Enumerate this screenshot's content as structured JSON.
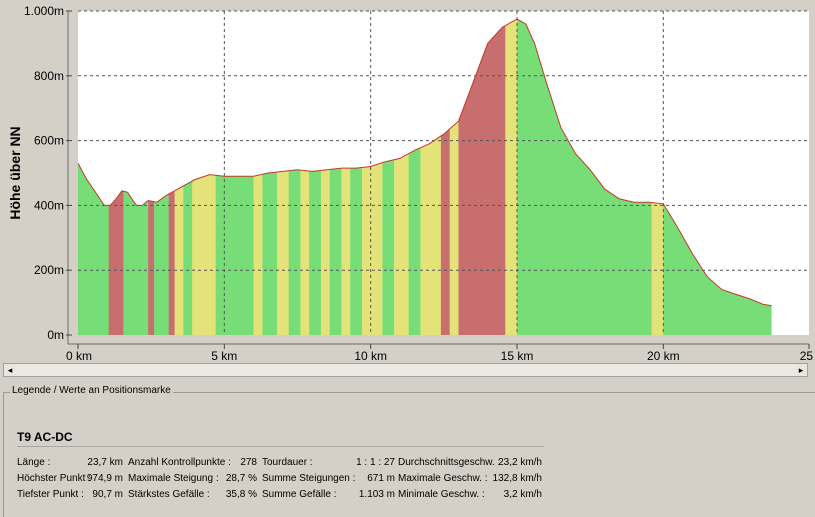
{
  "chart_data": {
    "type": "area",
    "ylabel": "Höhe über NN",
    "xlabel": "",
    "xlim": [
      0,
      25
    ],
    "ylim": [
      0,
      1000
    ],
    "x_ticks": [
      "0 km",
      "5 km",
      "10 km",
      "15 km",
      "20 km",
      "25 km"
    ],
    "y_ticks": [
      "0m",
      "200m",
      "400m",
      "600m",
      "800m",
      "1.000m"
    ],
    "grid": true,
    "colors": {
      "flat": "#77dd77",
      "moderate": "#e3e37a",
      "steep": "#c86e6e",
      "line": "#c0392b"
    },
    "series": [
      {
        "x": [
          0,
          0.3,
          0.6,
          0.9,
          1.1,
          1.3,
          1.5,
          1.7,
          1.8,
          2.0,
          2.2,
          2.4,
          2.7,
          3.0,
          3.2,
          3.5,
          4.0,
          4.5,
          5.0,
          5.5,
          6.0,
          6.5,
          7.0,
          7.5,
          8.0,
          8.5,
          9.0,
          9.5,
          10.0,
          10.5,
          11.0,
          11.5,
          12.0,
          12.5,
          13.0,
          13.5,
          14.0,
          14.5,
          15.0,
          15.3,
          15.6,
          16.0,
          16.5,
          17.0,
          17.5,
          18.0,
          18.5,
          19.0,
          19.5,
          20.0,
          20.5,
          21.0,
          21.5,
          22.0,
          22.5,
          23.0,
          23.4,
          23.7
        ],
        "y": [
          530,
          480,
          440,
          400,
          400,
          420,
          445,
          440,
          425,
          400,
          400,
          415,
          410,
          430,
          440,
          455,
          480,
          495,
          490,
          490,
          490,
          500,
          505,
          510,
          505,
          510,
          515,
          515,
          520,
          535,
          545,
          570,
          590,
          620,
          660,
          780,
          900,
          950,
          975,
          960,
          900,
          780,
          640,
          560,
          510,
          450,
          420,
          410,
          410,
          405,
          330,
          250,
          180,
          140,
          125,
          110,
          95,
          90
        ]
      }
    ],
    "gradient_bands": [
      {
        "from": 0,
        "to": 1.05,
        "grade": "flat"
      },
      {
        "from": 1.05,
        "to": 1.55,
        "grade": "steep"
      },
      {
        "from": 1.55,
        "to": 2.4,
        "grade": "flat"
      },
      {
        "from": 2.4,
        "to": 2.6,
        "grade": "steep"
      },
      {
        "from": 2.6,
        "to": 3.1,
        "grade": "flat"
      },
      {
        "from": 3.1,
        "to": 3.3,
        "grade": "steep"
      },
      {
        "from": 3.3,
        "to": 3.6,
        "grade": "moderate"
      },
      {
        "from": 3.6,
        "to": 3.9,
        "grade": "flat"
      },
      {
        "from": 3.9,
        "to": 4.7,
        "grade": "moderate"
      },
      {
        "from": 4.7,
        "to": 6.0,
        "grade": "flat"
      },
      {
        "from": 6.0,
        "to": 6.3,
        "grade": "moderate"
      },
      {
        "from": 6.3,
        "to": 6.8,
        "grade": "flat"
      },
      {
        "from": 6.8,
        "to": 7.2,
        "grade": "moderate"
      },
      {
        "from": 7.2,
        "to": 7.6,
        "grade": "flat"
      },
      {
        "from": 7.6,
        "to": 7.9,
        "grade": "moderate"
      },
      {
        "from": 7.9,
        "to": 8.3,
        "grade": "flat"
      },
      {
        "from": 8.3,
        "to": 8.6,
        "grade": "moderate"
      },
      {
        "from": 8.6,
        "to": 9.0,
        "grade": "flat"
      },
      {
        "from": 9.0,
        "to": 9.3,
        "grade": "moderate"
      },
      {
        "from": 9.3,
        "to": 9.7,
        "grade": "flat"
      },
      {
        "from": 9.7,
        "to": 10.4,
        "grade": "moderate"
      },
      {
        "from": 10.4,
        "to": 10.8,
        "grade": "flat"
      },
      {
        "from": 10.8,
        "to": 11.3,
        "grade": "moderate"
      },
      {
        "from": 11.3,
        "to": 11.7,
        "grade": "flat"
      },
      {
        "from": 11.7,
        "to": 12.4,
        "grade": "moderate"
      },
      {
        "from": 12.4,
        "to": 12.7,
        "grade": "steep"
      },
      {
        "from": 12.7,
        "to": 13.0,
        "grade": "moderate"
      },
      {
        "from": 13.0,
        "to": 14.6,
        "grade": "steep"
      },
      {
        "from": 14.6,
        "to": 15.0,
        "grade": "moderate"
      },
      {
        "from": 15.0,
        "to": 19.6,
        "grade": "flat"
      },
      {
        "from": 19.6,
        "to": 20.0,
        "grade": "moderate"
      },
      {
        "from": 20.0,
        "to": 23.7,
        "grade": "flat"
      }
    ]
  },
  "legend": {
    "title": "Legende / Werte an Positionsmarke",
    "tour_name": "T9 AC-DC",
    "stats": [
      [
        {
          "label": "Länge :",
          "value": "23,7 km"
        },
        {
          "label": "Höchster Punkt :",
          "value": "974,9 m"
        },
        {
          "label": "Tiefster Punkt :",
          "value": "90,7 m"
        }
      ],
      [
        {
          "label": "Anzahl Kontrollpunkte :",
          "value": "278"
        },
        {
          "label": "Maximale Steigung :",
          "value": "28,7 %"
        },
        {
          "label": "Stärkstes Gefälle :",
          "value": "35,8 %"
        }
      ],
      [
        {
          "label": "Tourdauer :",
          "value": "1 : 1 : 27"
        },
        {
          "label": "Summe Steigungen :",
          "value": "671 m"
        },
        {
          "label": "Summe Gefälle :",
          "value": "1.103 m"
        }
      ],
      [
        {
          "label": "Durchschnittsgeschw. :",
          "value": "23,2 km/h"
        },
        {
          "label": "Maximale Geschw. :",
          "value": "132,8 km/h"
        },
        {
          "label": "Minimale Geschw. :",
          "value": "3,2 km/h"
        }
      ]
    ]
  },
  "scrollbar": {
    "left_arrow": "◂",
    "right_arrow": "▸"
  }
}
